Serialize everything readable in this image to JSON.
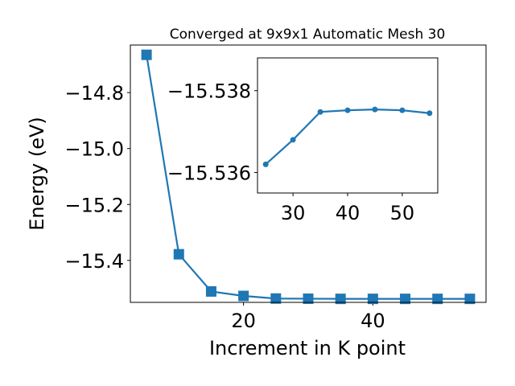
{
  "chart_data": [
    {
      "type": "line",
      "title": "Converged at 9x9x1 Automatic Mesh 30",
      "xlabel": "Increment in K point",
      "ylabel": "Energy (eV)",
      "xlim": [
        2.5,
        57.5
      ],
      "ylim": [
        -15.55,
        -14.63
      ],
      "xticks": [
        20,
        40
      ],
      "yticks": [
        -15.4,
        -15.2,
        -15.0,
        -14.8
      ],
      "xtick_labels": [
        "20",
        "40"
      ],
      "ytick_labels": [
        "−15.4",
        "−15.2",
        "−15.0",
        "−14.8"
      ],
      "marker": "square",
      "color": "#1f77b4",
      "grid": false,
      "series": [
        {
          "x": [
            5,
            10,
            15,
            20,
            25,
            30,
            35,
            40,
            45,
            50,
            55
          ],
          "y": [
            -14.665,
            -15.378,
            -15.511,
            -15.527,
            -15.5363,
            -15.5369,
            -15.5375,
            -15.5375,
            -15.5375,
            -15.5375,
            -15.5375
          ]
        }
      ]
    },
    {
      "type": "line",
      "inset": true,
      "xlim": [
        23.5,
        56.5
      ],
      "ylim": [
        -15.5355,
        -15.5388
      ],
      "xticks": [
        30,
        40,
        50
      ],
      "yticks": [
        -15.536,
        -15.538
      ],
      "xtick_labels": [
        "30",
        "40",
        "50"
      ],
      "ytick_labels": [
        "−15.536",
        "−15.538"
      ],
      "marker": "circle",
      "color": "#1f77b4",
      "grid": false,
      "series": [
        {
          "x": [
            25,
            30,
            35,
            40,
            45,
            50,
            55
          ],
          "y": [
            -15.5362,
            -15.5368,
            -15.53748,
            -15.53752,
            -15.53754,
            -15.53752,
            -15.53745
          ]
        }
      ]
    }
  ]
}
